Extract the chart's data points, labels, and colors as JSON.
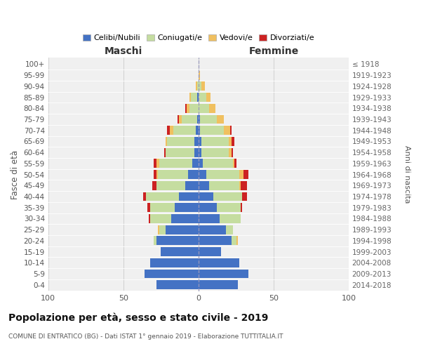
{
  "age_groups": [
    "0-4",
    "5-9",
    "10-14",
    "15-19",
    "20-24",
    "25-29",
    "30-34",
    "35-39",
    "40-44",
    "45-49",
    "50-54",
    "55-59",
    "60-64",
    "65-69",
    "70-74",
    "75-79",
    "80-84",
    "85-89",
    "90-94",
    "95-99",
    "100+"
  ],
  "birth_years": [
    "2014-2018",
    "2009-2013",
    "2004-2008",
    "1999-2003",
    "1994-1998",
    "1989-1993",
    "1984-1988",
    "1979-1983",
    "1974-1978",
    "1969-1973",
    "1964-1968",
    "1959-1963",
    "1954-1958",
    "1949-1953",
    "1944-1948",
    "1939-1943",
    "1934-1938",
    "1929-1933",
    "1924-1928",
    "1919-1923",
    "≤ 1918"
  ],
  "maschi": {
    "celibi": [
      28,
      36,
      32,
      25,
      28,
      22,
      18,
      16,
      13,
      9,
      7,
      4,
      3,
      3,
      2,
      1,
      0,
      1,
      0,
      0,
      0
    ],
    "coniugati": [
      0,
      0,
      0,
      0,
      2,
      4,
      14,
      16,
      22,
      19,
      20,
      22,
      19,
      18,
      15,
      10,
      6,
      4,
      1,
      0,
      0
    ],
    "vedovi": [
      0,
      0,
      0,
      0,
      0,
      1,
      0,
      0,
      0,
      0,
      1,
      2,
      0,
      1,
      2,
      2,
      2,
      1,
      1,
      0,
      0
    ],
    "divorziati": [
      0,
      0,
      0,
      0,
      0,
      0,
      1,
      2,
      2,
      3,
      2,
      2,
      1,
      0,
      2,
      1,
      1,
      0,
      0,
      0,
      0
    ]
  },
  "femmine": {
    "nubili": [
      26,
      33,
      27,
      15,
      22,
      18,
      14,
      12,
      10,
      7,
      5,
      3,
      2,
      2,
      1,
      1,
      0,
      0,
      0,
      0,
      0
    ],
    "coniugate": [
      0,
      0,
      0,
      0,
      3,
      5,
      14,
      16,
      19,
      20,
      22,
      20,
      18,
      18,
      16,
      11,
      7,
      5,
      2,
      0,
      0
    ],
    "vedove": [
      0,
      0,
      0,
      0,
      1,
      0,
      0,
      0,
      0,
      1,
      3,
      1,
      2,
      2,
      4,
      5,
      4,
      3,
      2,
      1,
      0
    ],
    "divorziate": [
      0,
      0,
      0,
      0,
      0,
      0,
      0,
      1,
      3,
      4,
      3,
      1,
      1,
      2,
      1,
      0,
      0,
      0,
      0,
      0,
      0
    ]
  },
  "colors": {
    "celibi": "#4472c4",
    "coniugati": "#c5dda0",
    "vedovi": "#f0c060",
    "divorziati": "#cc2222"
  },
  "xlim": 100,
  "title": "Popolazione per età, sesso e stato civile - 2019",
  "subtitle": "COMUNE DI ENTRATICO (BG) - Dati ISTAT 1° gennaio 2019 - Elaborazione TUTTITALIA.IT",
  "ylabel_left": "Fasce di età",
  "ylabel_right": "Anni di nascita",
  "xlabel_left": "Maschi",
  "xlabel_right": "Femmine",
  "legend_labels": [
    "Celibi/Nubili",
    "Coniugati/e",
    "Vedovi/e",
    "Divorziati/e"
  ],
  "background_color": "#ffffff",
  "grid_color": "#cccccc",
  "bar_bg_color": "#f0f0f0"
}
